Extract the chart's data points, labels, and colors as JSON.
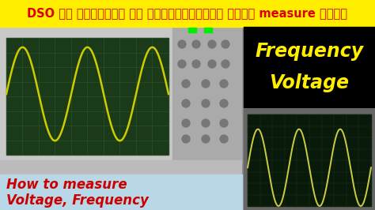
{
  "title_text": "DSO से वोल्टेज और फ्रीक्वेंसी कैसे measure करें",
  "freq_text": "Frequency",
  "volt_text": "Voltage",
  "bottom_text_line1": "How to measure",
  "bottom_text_line2": "Voltage, Frequency",
  "bg_color": "#888888",
  "title_bg": "#ffee00",
  "title_fg": "#dd0000",
  "freq_volt_bg": "#000000",
  "freq_color": "#ffee00",
  "volt_color": "#ffee00",
  "bottom_bg": "#b8d8e8",
  "bottom_fg": "#cc0000",
  "osc_body": "#c8c8c8",
  "osc_bg": "#1a3a1a",
  "osc_line_color": "#cccc00",
  "osc_grid_color": "#2a5a2a",
  "osc2_bg": "#0a1a0a",
  "osc2_line_color": "#cccc44",
  "osc2_grid_color": "#1a3a1a",
  "ctrl_color": "#aaaaaa"
}
